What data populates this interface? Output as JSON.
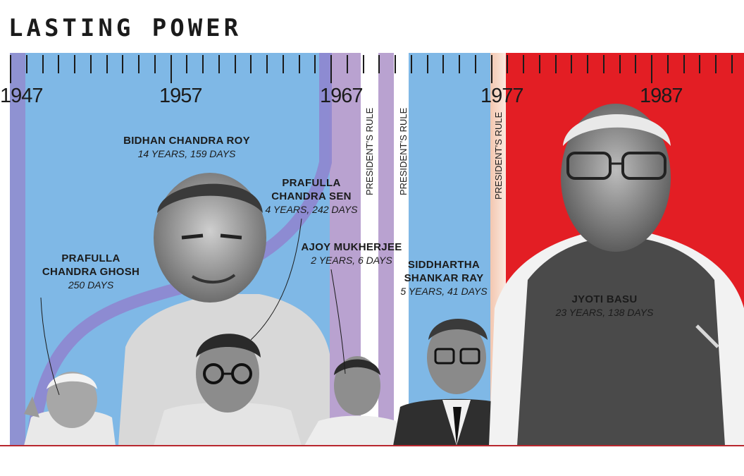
{
  "title": "LASTING POWER",
  "colors": {
    "congress": "#7fb8e6",
    "united_front": "#b9a2d0",
    "left_front": "#e31e24",
    "leader_line": "#8f86cf"
  },
  "timeline": {
    "years": [
      "1947",
      "1957",
      "1967",
      "1977",
      "1987"
    ],
    "presidents_rule_label": "PRESIDENT’S RULE"
  },
  "leaders": [
    {
      "name_lines": [
        "PRAFULLA",
        "CHANDRA GHOSH"
      ],
      "duration": "250 DAYS"
    },
    {
      "name_lines": [
        "BIDHAN CHANDRA ROY"
      ],
      "duration": "14 YEARS, 159 DAYS"
    },
    {
      "name_lines": [
        "PRAFULLA",
        "CHANDRA SEN"
      ],
      "duration": "4 YEARS, 242 DAYS"
    },
    {
      "name_lines": [
        "AJOY MUKHERJEE"
      ],
      "duration": "2 YEARS, 6 DAYS"
    },
    {
      "name_lines": [
        "SIDDHARTHA",
        "SHANKAR RAY"
      ],
      "duration": "5 YEARS, 41 DAYS"
    },
    {
      "name_lines": [
        "JYOTI BASU"
      ],
      "duration": "23 YEARS, 138 DAYS"
    }
  ]
}
